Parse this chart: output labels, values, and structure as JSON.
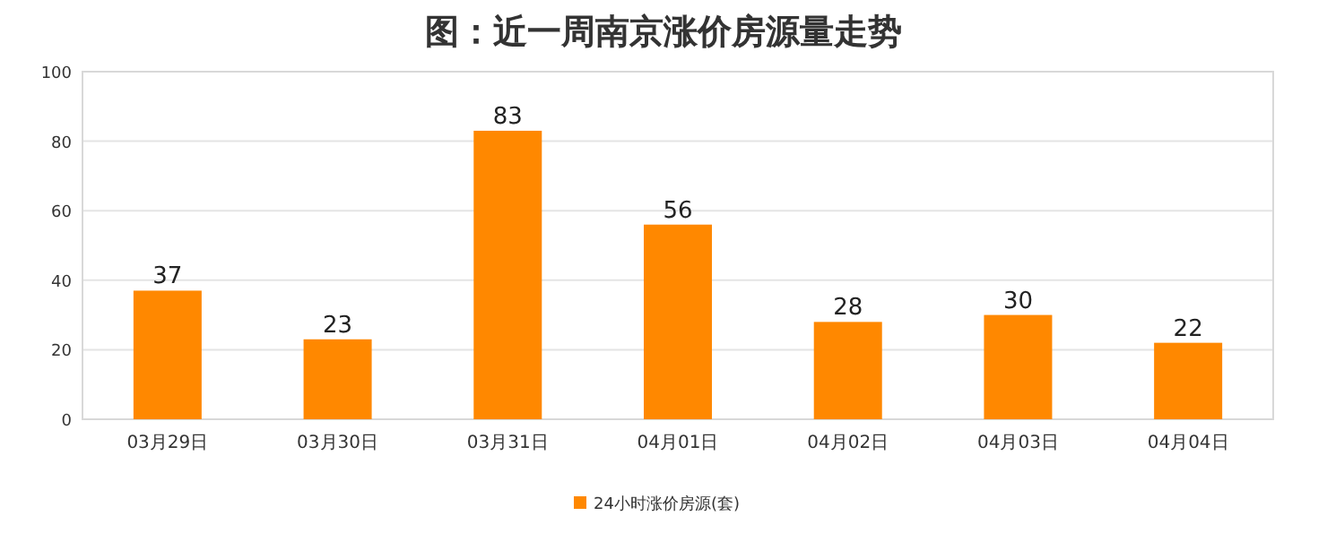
{
  "chart_data": {
    "type": "bar",
    "title": "图：近一周南京涨价房源量走势",
    "categories": [
      "03月29日",
      "03月30日",
      "03月31日",
      "04月01日",
      "04月02日",
      "04月03日",
      "04月04日"
    ],
    "series": [
      {
        "name": "24小时涨价房源(套)",
        "color": "#ff8800",
        "values": [
          37,
          23,
          83,
          56,
          28,
          30,
          22
        ]
      }
    ],
    "ylim": [
      0,
      100
    ],
    "yticks": [
      0,
      20,
      40,
      60,
      80,
      100
    ],
    "grid": "y",
    "legend": "bottom",
    "data_labels": true
  }
}
